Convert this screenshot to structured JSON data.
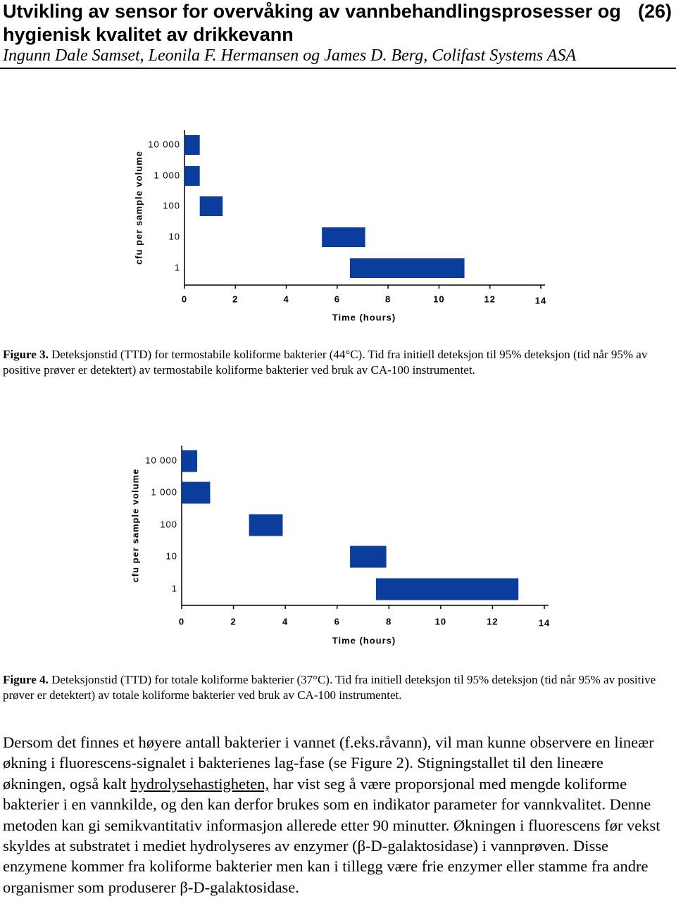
{
  "header": {
    "title": "Utvikling av sensor for overvåking av vannbehandlingsprosesser og hygienisk kvalitet av drikkevann",
    "page": "(26)",
    "authors": "Ingunn Dale Samset, Leonila F. Hermansen og James D. Berg, Colifast Systems ASA"
  },
  "chart_data": [
    {
      "type": "range-bar",
      "categories": [
        "10 000",
        "1 000",
        "100",
        "10",
        "1"
      ],
      "starts": [
        0,
        0,
        0.6,
        5.4,
        6.5
      ],
      "ends": [
        0.6,
        0.6,
        1.5,
        7.1,
        11.0
      ],
      "color": "#0b3d9c",
      "xlim": [
        0,
        14
      ],
      "xticks": [
        0,
        2,
        4,
        6,
        8,
        10,
        12,
        14
      ],
      "x_label": "Time (hours)",
      "y_label": "cfu per sample volume"
    },
    {
      "type": "range-bar",
      "categories": [
        "10 000",
        "1 000",
        "100",
        "10",
        "1"
      ],
      "starts": [
        0,
        0,
        2.6,
        6.5,
        7.5
      ],
      "ends": [
        0.6,
        1.1,
        3.9,
        7.9,
        13.0
      ],
      "color": "#0b3d9c",
      "xlim": [
        0,
        14
      ],
      "xticks": [
        0,
        2,
        4,
        6,
        8,
        10,
        12,
        14
      ],
      "x_label": "Time (hours)",
      "y_label": "cfu per sample volume"
    }
  ],
  "captions": [
    {
      "label": "Figure 3.",
      "text": "Deteksjonstid (TTD) for termostabile koliforme bakterier (44°C). Tid fra initiell deteksjon til 95% deteksjon (tid når 95% av positive prøver er detektert) av termostabile koliforme bakterier ved bruk av CA-100 instrumentet."
    },
    {
      "label": "Figure 4.",
      "text": "Deteksjonstid (TTD) for totale koliforme bakterier (37°C). Tid fra initiell deteksjon til 95% deteksjon (tid når 95% av positive prøver er detektert) av totale koliforme bakterier ved bruk av CA-100 instrumentet."
    }
  ],
  "body": [
    "Dersom det finnes et høyere antall bakterier i vannet (f.eks.råvann), vil man kunne observere en lineær økning i fluorescens-signalet i bakterienes lag-fase (se Figure 2). Stigningstallet til den lineære økningen, også kalt ",
    "hydrolysehastigheten,",
    " har vist seg å være proporsjonal med mengde koliforme bakterier i en vannkilde, og den kan derfor brukes som en indikator parameter for vannkvalitet. Denne metoden kan gi semikvantitativ informasjon allerede etter 90 minutter. Økningen i fluorescens før vekst skyldes at substratet i mediet hydrolyseres av enzymer (β-D-galaktosidase) i vannprøven. Disse enzymene kommer fra koliforme bakterier men kan i tillegg være frie enzymer eller stamme fra andre organismer som produserer β-D-galaktosidase."
  ]
}
